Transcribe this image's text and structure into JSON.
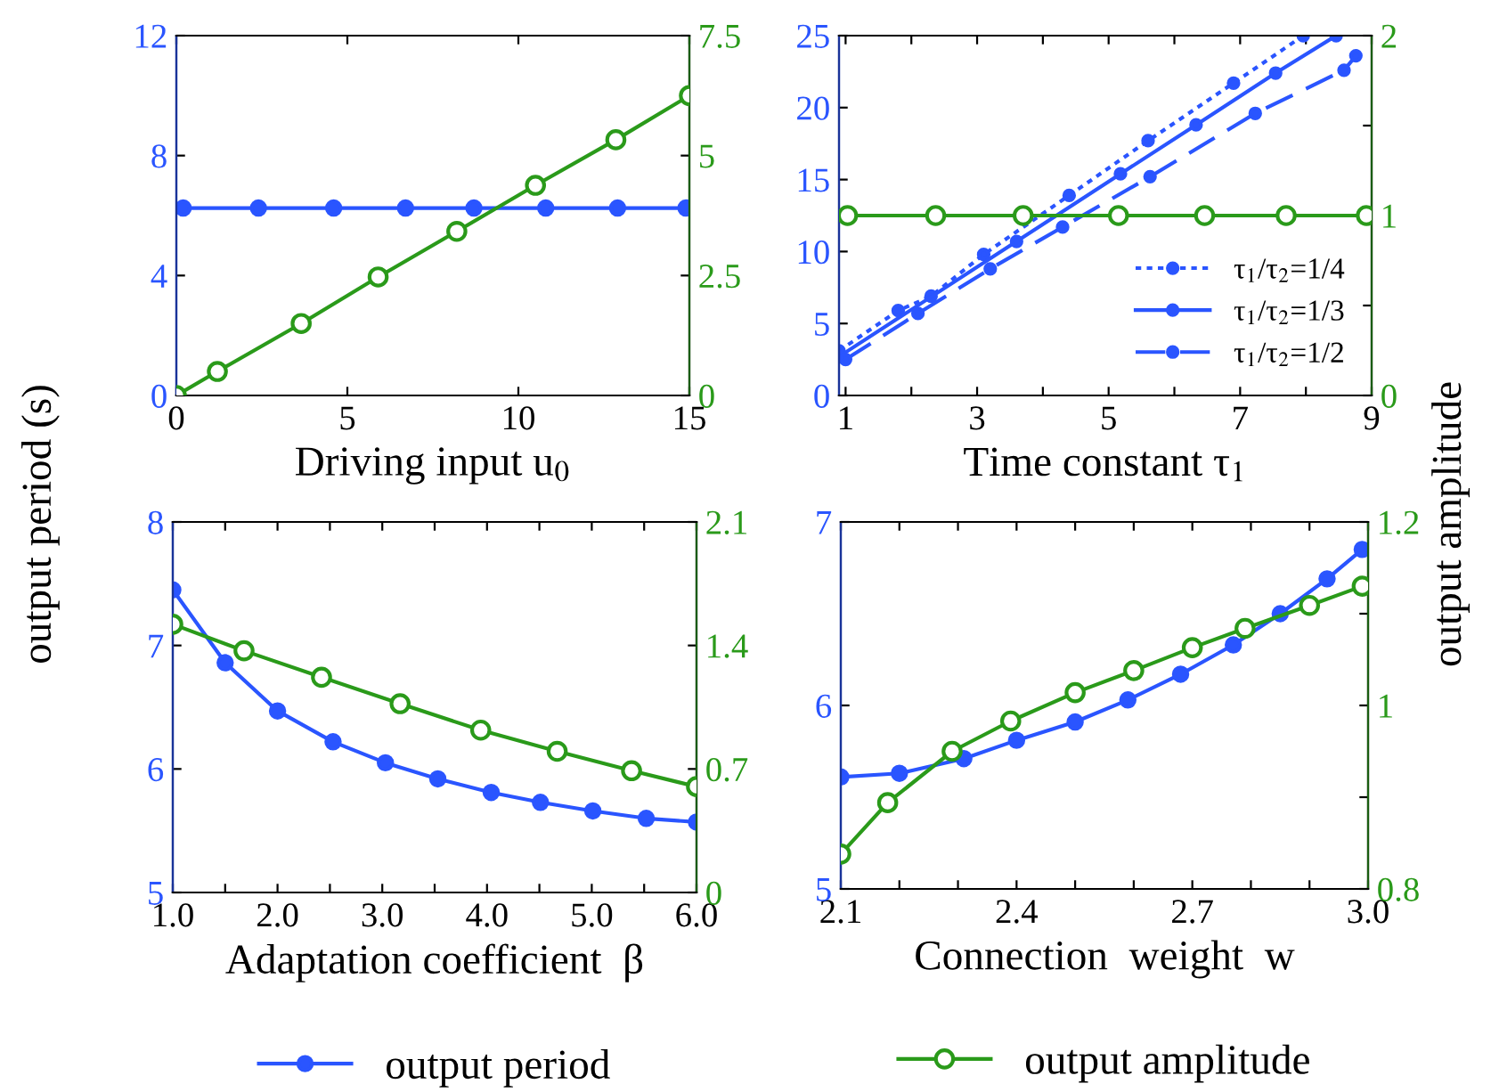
{
  "chart_data": [
    {
      "type": "line",
      "xlabel": "Driving input u$_{0}$",
      "ylabel": "output period (s)",
      "xlim": [
        0,
        15
      ],
      "ylim": [
        0,
        12
      ],
      "y2lim": [
        0,
        7.5
      ],
      "xticks": [
        0,
        5,
        10,
        15
      ],
      "yticks": [
        0,
        4,
        8,
        12
      ],
      "y2ticks": [
        0,
        2.5,
        5,
        7.5
      ],
      "grid": false,
      "legend": false,
      "series": [
        {
          "color": "#2a55ff",
          "marker": "circle",
          "line_style": "solid",
          "x": [
            0.2,
            2.4,
            4.6,
            6.7,
            8.7,
            10.8,
            12.9,
            14.9
          ],
          "values": [
            6.25,
            6.25,
            6.25,
            6.25,
            6.25,
            6.25,
            6.25,
            6.25
          ]
        },
        {
          "color": "#2a9a1a",
          "marker": "circle",
          "line_style": "solid",
          "axis": "y2",
          "x": [
            0,
            1.2,
            3.65,
            5.9,
            8.2,
            10.5,
            12.85,
            15.0
          ],
          "values": [
            0,
            0.5,
            1.5,
            2.47,
            3.42,
            4.38,
            5.33,
            6.25
          ]
        }
      ]
    },
    {
      "type": "line",
      "xlabel": "Time constant τ$_{1}$",
      "y2label": "output amplitude",
      "xlim": [
        0.9,
        9
      ],
      "ylim": [
        0,
        25
      ],
      "y2lim": [
        0,
        2
      ],
      "xticks": [
        1,
        {
          "value": 2,
          "label": null
        },
        3,
        {
          "value": 4,
          "label": null
        },
        5,
        {
          "value": 6,
          "label": null
        },
        7,
        {
          "value": 8,
          "label": null
        },
        9
      ],
      "yticks": [
        0,
        5,
        10,
        15,
        20,
        25
      ],
      "y2ticks": [
        0,
        {
          "value": 0.5,
          "label": null
        },
        1,
        {
          "value": 1.5,
          "label": null
        },
        2
      ],
      "grid": false,
      "legend": "bottom right",
      "series": [
        {
          "name": "τ$_{1}$/τ$_{2}$=1/4",
          "color": "#2a55ff",
          "marker": "circle",
          "line_style": "dotted",
          "x": [
            0.9,
            1.8,
            2.3,
            3.1,
            4.4,
            5.6,
            6.9,
            7.96
          ],
          "values": [
            3.1,
            5.9,
            6.9,
            9.8,
            13.9,
            17.7,
            21.7,
            25
          ]
        },
        {
          "name": "τ$_{1}$/τ$_{2}$=1/3",
          "color": "#2a55ff",
          "marker": "circle",
          "line_style": "solid",
          "x": [
            0.9,
            3.6,
            5.18,
            6.33,
            7.54,
            8.46
          ],
          "values": [
            2.7,
            10.7,
            15.4,
            18.8,
            22.4,
            25
          ]
        },
        {
          "name": "τ$_{1}$/τ$_{2}$=1/2",
          "color": "#2a55ff",
          "marker": "circle",
          "line_style": "dashed",
          "x": [
            1.0,
            2.1,
            3.2,
            4.3,
            5.63,
            7.23,
            8.58,
            8.76
          ],
          "values": [
            2.5,
            5.7,
            8.8,
            11.7,
            15.2,
            19.6,
            22.6,
            23.6
          ]
        },
        {
          "color": "#2a9a1a",
          "marker": "circle",
          "line_style": "solid",
          "axis": "y2",
          "x": [
            1.03,
            2.37,
            3.7,
            5.15,
            6.46,
            7.7,
            8.92
          ],
          "values": [
            1,
            1,
            1,
            1,
            1,
            1,
            1
          ]
        }
      ]
    },
    {
      "type": "line",
      "xlabel": "Adaptation coefficient  β",
      "xlim": [
        1,
        6
      ],
      "ylim": [
        5,
        8
      ],
      "y2lim": [
        0,
        2.1
      ],
      "xticks": [
        {
          "value": 1,
          "label": "1.0"
        },
        {
          "value": 1.5,
          "label": null
        },
        {
          "value": 2,
          "label": "2.0"
        },
        {
          "value": 2.5,
          "label": null
        },
        {
          "value": 3,
          "label": "3.0"
        },
        {
          "value": 3.5,
          "label": null
        },
        {
          "value": 4,
          "label": "4.0"
        },
        {
          "value": 4.5,
          "label": null
        },
        {
          "value": 5,
          "label": "5.0"
        },
        {
          "value": 5.5,
          "label": null
        },
        {
          "value": 6,
          "label": "6.0"
        }
      ],
      "yticks": [
        5,
        6,
        7,
        8
      ],
      "y2ticks": [
        0,
        0.7,
        1.4,
        2.1
      ],
      "grid": false,
      "legend": "bottom",
      "series": [
        {
          "name": "output period",
          "color": "#2a55ff",
          "marker": "circle",
          "line_style": "solid",
          "x": [
            1.0,
            1.5,
            2.0,
            2.53,
            3.03,
            3.53,
            4.04,
            4.51,
            5.01,
            5.52,
            6.0
          ],
          "values": [
            7.45,
            6.86,
            6.47,
            6.22,
            6.05,
            5.92,
            5.81,
            5.73,
            5.66,
            5.6,
            5.57
          ]
        },
        {
          "color": "#2a9a1a",
          "marker": "circle",
          "line_style": "solid",
          "axis": "y2",
          "x": [
            1.0,
            1.68,
            2.42,
            3.17,
            3.94,
            4.67,
            5.38,
            6.0
          ],
          "values": [
            1.52,
            1.37,
            1.22,
            1.07,
            0.92,
            0.8,
            0.69,
            0.6
          ]
        }
      ]
    },
    {
      "type": "line",
      "xlabel": "Connection  weight  w",
      "xlim": [
        2.1,
        3.0
      ],
      "ylim": [
        5,
        7
      ],
      "y2lim": [
        0.8,
        1.2
      ],
      "xticks": [
        2.1,
        {
          "value": 2.2,
          "label": null
        },
        {
          "value": 2.3,
          "label": null
        },
        2.4,
        {
          "value": 2.5,
          "label": null
        },
        {
          "value": 2.6,
          "label": null
        },
        2.7,
        {
          "value": 2.8,
          "label": null
        },
        {
          "value": 2.9,
          "label": null
        },
        {
          "value": 3,
          "label": "3.0"
        }
      ],
      "yticks": [
        5,
        6,
        7
      ],
      "y2ticks": [
        0.8,
        {
          "value": 0.9,
          "label": null
        },
        1,
        {
          "value": 1.1,
          "label": null
        },
        1.2
      ],
      "grid": false,
      "legend": "bottom",
      "series": [
        {
          "color": "#2a55ff",
          "marker": "circle",
          "line_style": "solid",
          "x": [
            2.1,
            2.2,
            2.31,
            2.4,
            2.5,
            2.59,
            2.68,
            2.77,
            2.85,
            2.93,
            2.99
          ],
          "values": [
            5.61,
            5.63,
            5.71,
            5.81,
            5.91,
            6.03,
            6.17,
            6.33,
            6.5,
            6.69,
            6.85
          ]
        },
        {
          "name": "output amplitude",
          "color": "#2a9a1a",
          "marker": "circle",
          "line_style": "solid",
          "axis": "y2",
          "x": [
            2.1,
            2.18,
            2.29,
            2.39,
            2.5,
            2.6,
            2.7,
            2.79,
            2.9,
            2.99
          ],
          "values": [
            0.838,
            0.894,
            0.95,
            0.983,
            1.014,
            1.038,
            1.063,
            1.084,
            1.109,
            1.13
          ]
        }
      ]
    }
  ]
}
